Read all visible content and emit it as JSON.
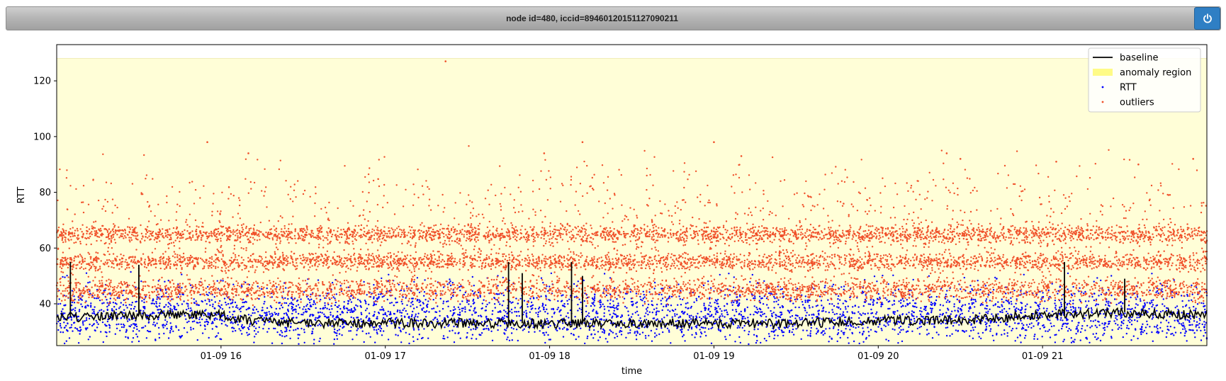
{
  "header": {
    "title": "node id=480, iccid=89460120151127090211",
    "power_icon": "power-icon"
  },
  "chart_data": {
    "type": "scatter",
    "title": "",
    "xlabel": "time",
    "ylabel": "RTT",
    "xlim": [
      "01-09 15:00",
      "01-09 22:00"
    ],
    "ylim": [
      25,
      133
    ],
    "x_ticks": [
      "01-09 16",
      "01-09 17",
      "01-09 18",
      "01-09 19",
      "01-09 20",
      "01-09 21"
    ],
    "y_ticks": [
      40,
      60,
      80,
      100,
      120
    ],
    "grid": false,
    "legend": {
      "placement": "top-right",
      "entries": [
        "baseline",
        "anomaly region",
        "RTT",
        "outliers"
      ]
    },
    "colors": {
      "baseline": "#000000",
      "anomaly_region": "#fffb7a",
      "rtt": "#0000ff",
      "outliers": "#f0502a"
    },
    "anomaly_region": {
      "y_range": [
        25,
        128
      ]
    },
    "series": [
      {
        "name": "baseline",
        "style": "line",
        "x": [
          "15:00",
          "15:30",
          "16:00",
          "16:10",
          "16:30",
          "17:00",
          "17:30",
          "18:00",
          "18:30",
          "19:00",
          "19:30",
          "20:00",
          "20:30",
          "20:45",
          "21:00",
          "21:30",
          "21:50",
          "22:00"
        ],
        "y": [
          35,
          36,
          36,
          34,
          33,
          33,
          33,
          33,
          33,
          33,
          33,
          34,
          34,
          35,
          36,
          37,
          36,
          36
        ],
        "spikes": [
          {
            "x": "15:05",
            "y": 55
          },
          {
            "x": "15:30",
            "y": 54
          },
          {
            "x": "17:45",
            "y": 55
          },
          {
            "x": "17:50",
            "y": 51
          },
          {
            "x": "18:08",
            "y": 55
          },
          {
            "x": "18:12",
            "y": 50
          },
          {
            "x": "21:08",
            "y": 55
          },
          {
            "x": "21:30",
            "y": 49
          }
        ]
      },
      {
        "name": "RTT",
        "style": "scatter",
        "bands": [
          {
            "y_center": 34,
            "spread": 4,
            "density": "high"
          },
          {
            "y_center": 41,
            "spread": 4,
            "density": "medium"
          }
        ]
      },
      {
        "name": "outliers",
        "style": "scatter",
        "bands": [
          {
            "y_center": 65,
            "spread": 1.5,
            "density": "high"
          },
          {
            "y_center": 55,
            "spread": 1.5,
            "density": "high"
          },
          {
            "y_center": 45,
            "spread": 2,
            "density": "high"
          },
          {
            "y_center": 60,
            "spread": 6,
            "density": "low"
          },
          {
            "y_center": 75,
            "spread": 8,
            "density": "low"
          }
        ],
        "highlights": [
          {
            "x": "17:22",
            "y": 127
          },
          {
            "x": "15:55",
            "y": 98
          },
          {
            "x": "16:10",
            "y": 94
          },
          {
            "x": "17:58",
            "y": 94
          },
          {
            "x": "18:12",
            "y": 98
          },
          {
            "x": "19:00",
            "y": 98
          },
          {
            "x": "19:10",
            "y": 93
          },
          {
            "x": "20:25",
            "y": 94
          },
          {
            "x": "20:30",
            "y": 92
          },
          {
            "x": "21:05",
            "y": 91
          },
          {
            "x": "21:35",
            "y": 90
          },
          {
            "x": "21:55",
            "y": 92
          }
        ]
      }
    ]
  }
}
